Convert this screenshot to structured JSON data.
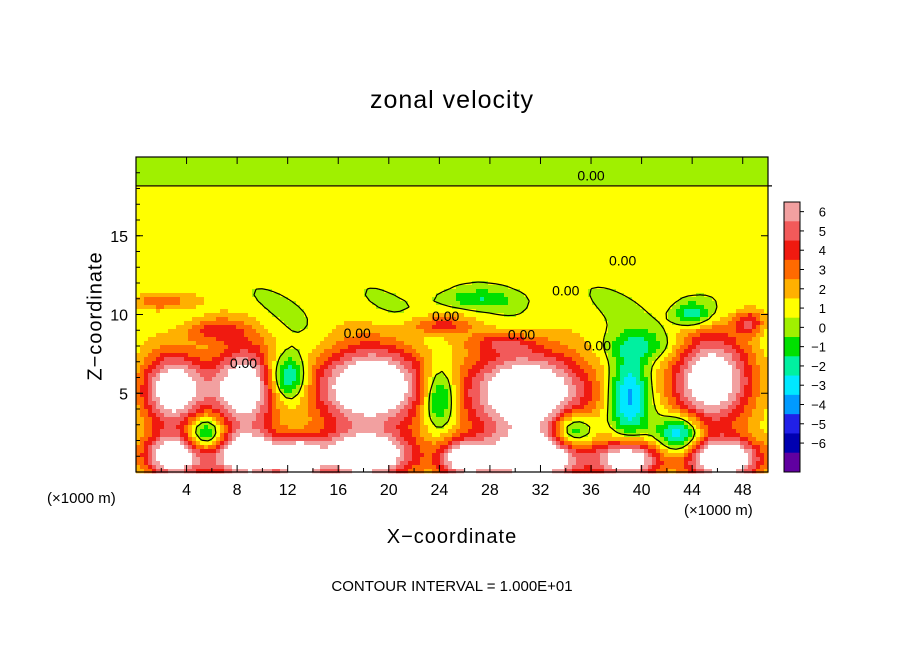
{
  "chart_data": {
    "type": "heatmap",
    "title": "zonal velocity",
    "xlabel": "X−coordinate",
    "ylabel": "Z−coordinate",
    "x_unit_left": "(×1000 m)",
    "x_unit_right": "(×1000 m)",
    "xlim": [
      0,
      50
    ],
    "ylim": [
      0,
      20
    ],
    "x_ticks": [
      "4",
      "8",
      "12",
      "16",
      "20",
      "24",
      "28",
      "32",
      "36",
      "40",
      "44",
      "48"
    ],
    "y_ticks": [
      "5",
      "10",
      "15"
    ],
    "colorbar": {
      "labels": [
        "6",
        "5",
        "4",
        "3",
        "2",
        "1",
        "0",
        "−1",
        "−2",
        "−3",
        "−4",
        "−5",
        "−6"
      ],
      "colors": [
        "#f2a0a0",
        "#f25a5a",
        "#f01a10",
        "#ff6a00",
        "#ffb000",
        "#ffff00",
        "#a0f000",
        "#00e000",
        "#00f0a0",
        "#00e8ff",
        "#009aff",
        "#2020e8",
        "#0000b0",
        "#6000a0"
      ]
    },
    "contour_labels": [
      "0.00",
      "0.00",
      "0.00",
      "0.00",
      "0.00",
      "0.00",
      "0.00",
      "0.00"
    ],
    "footer": "CONTOUR INTERVAL = 1.000E+01",
    "features": [
      {
        "x": 3.0,
        "z": 5.2,
        "value": 8,
        "rx": 2.6,
        "rz": 2.4
      },
      {
        "x": 8.5,
        "z": 5.3,
        "value": 8,
        "rx": 2.6,
        "rz": 2.8
      },
      {
        "x": 12.0,
        "z": 6.0,
        "value": -5,
        "rx": 1.5,
        "rz": 1.5
      },
      {
        "x": 18.5,
        "z": 5.4,
        "value": 9,
        "rx": 4.5,
        "rz": 2.6
      },
      {
        "x": 24.0,
        "z": 4.8,
        "value": -5,
        "rx": 1.4,
        "rz": 2.0
      },
      {
        "x": 31.0,
        "z": 5.0,
        "value": 9,
        "rx": 5.0,
        "rz": 2.8
      },
      {
        "x": 39.0,
        "z": 4.8,
        "value": -5,
        "rx": 1.6,
        "rz": 2.6
      },
      {
        "x": 45.5,
        "z": 5.8,
        "value": 8,
        "rx": 3.3,
        "rz": 3.0
      },
      {
        "x": 3.0,
        "z": 1.0,
        "value": 8,
        "rx": 2.5,
        "rz": 1.4
      },
      {
        "x": 9.0,
        "z": 1.0,
        "value": 9,
        "rx": 3.0,
        "rz": 1.4
      },
      {
        "x": 13.0,
        "z": 0.8,
        "value": 7,
        "rx": 1.5,
        "rz": 1.2
      },
      {
        "x": 18.0,
        "z": 1.0,
        "value": 9,
        "rx": 4.0,
        "rz": 1.5
      },
      {
        "x": 26.0,
        "z": 0.8,
        "value": 7,
        "rx": 2.0,
        "rz": 1.2
      },
      {
        "x": 31.5,
        "z": 0.9,
        "value": 9,
        "rx": 4.0,
        "rz": 1.5
      },
      {
        "x": 39.0,
        "z": 0.8,
        "value": 8,
        "rx": 2.5,
        "rz": 1.2
      },
      {
        "x": 46.5,
        "z": 0.8,
        "value": 9,
        "rx": 3.0,
        "rz": 1.3
      },
      {
        "x": 5.5,
        "z": 2.4,
        "value": -5,
        "rx": 1.5,
        "rz": 1.2
      },
      {
        "x": 34.5,
        "z": 2.6,
        "value": -5,
        "rx": 1.7,
        "rz": 1.2
      },
      {
        "x": 43.0,
        "z": 2.4,
        "value": -5,
        "rx": 1.7,
        "rz": 1.2
      },
      {
        "x": 2.0,
        "z": 10.8,
        "value": 3,
        "rx": 2.5,
        "rz": 0.6
      },
      {
        "x": 6.0,
        "z": 9.0,
        "value": 3,
        "rx": 2.5,
        "rz": 0.8
      },
      {
        "x": 24.0,
        "z": 9.3,
        "value": 3,
        "rx": 2.5,
        "rz": 0.6
      },
      {
        "x": 27.0,
        "z": 11.0,
        "value": -2,
        "rx": 3.0,
        "rz": 0.6
      },
      {
        "x": 44.0,
        "z": 10.0,
        "value": -4,
        "rx": 1.5,
        "rz": 0.8
      },
      {
        "x": 48.5,
        "z": 9.5,
        "value": 4,
        "rx": 1.2,
        "rz": 0.8
      },
      {
        "x": 40.0,
        "z": 8.0,
        "value": -2,
        "rx": 3.0,
        "rz": 1.0
      },
      {
        "x": 29.0,
        "z": 8.2,
        "value": 2,
        "rx": 3.0,
        "rz": 0.6
      }
    ]
  }
}
